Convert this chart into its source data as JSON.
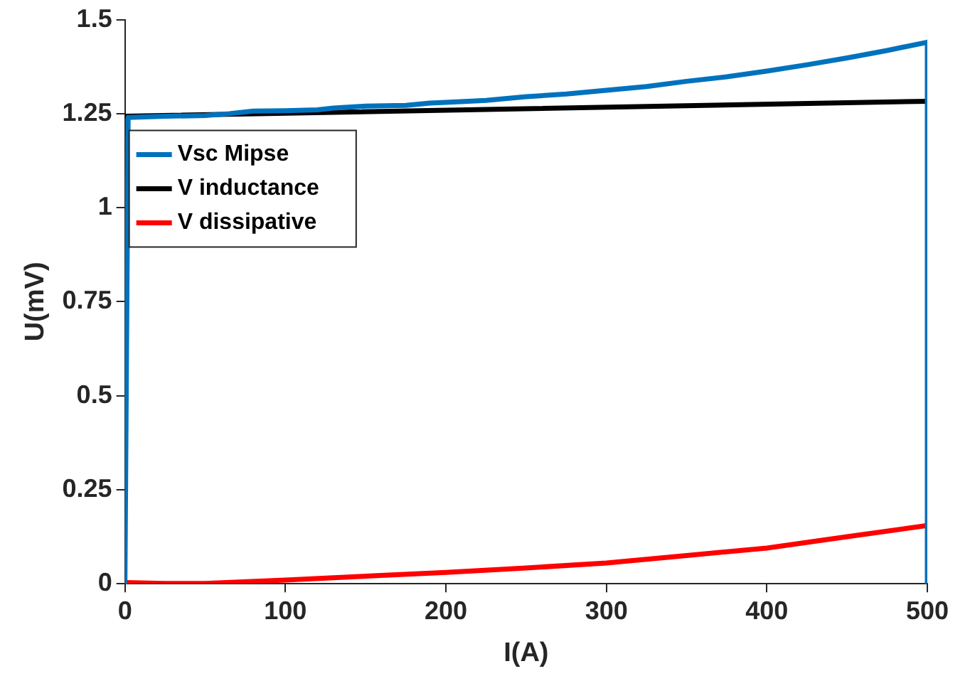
{
  "chart_data": {
    "type": "line",
    "xlabel": "I(A)",
    "ylabel": "U(mV)",
    "xlim": [
      0,
      500
    ],
    "xticks": [
      0,
      100,
      200,
      300,
      400,
      500
    ],
    "ylim": [
      0,
      1.5
    ],
    "yticks": [
      0,
      0.25,
      0.5,
      0.75,
      1,
      1.25,
      1.5
    ],
    "grid": false,
    "legend": "top left",
    "marker": "none",
    "line_style": "solid",
    "series": [
      {
        "name": "Vsc Mipse",
        "color": "#0072bd",
        "x": [
          0,
          2,
          25,
          50,
          65,
          80,
          100,
          120,
          130,
          150,
          175,
          190,
          200,
          225,
          250,
          275,
          300,
          325,
          350,
          375,
          400,
          425,
          450,
          475,
          500,
          500
        ],
        "values": [
          0,
          1.24,
          1.243,
          1.245,
          1.25,
          1.257,
          1.258,
          1.26,
          1.265,
          1.27,
          1.272,
          1.278,
          1.28,
          1.285,
          1.295,
          1.302,
          1.312,
          1.322,
          1.336,
          1.348,
          1.363,
          1.38,
          1.398,
          1.418,
          1.44,
          0
        ]
      },
      {
        "name": "V inductance",
        "color": "#000000",
        "x": [
          0,
          500
        ],
        "values": [
          1.243,
          1.283
        ]
      },
      {
        "name": "V dissipative",
        "color": "#ff0000",
        "x": [
          0,
          25,
          50,
          100,
          150,
          200,
          250,
          300,
          350,
          400,
          450,
          500
        ],
        "values": [
          0.003,
          0.001,
          0.001,
          0.01,
          0.02,
          0.03,
          0.042,
          0.055,
          0.075,
          0.095,
          0.125,
          0.155
        ]
      }
    ]
  }
}
